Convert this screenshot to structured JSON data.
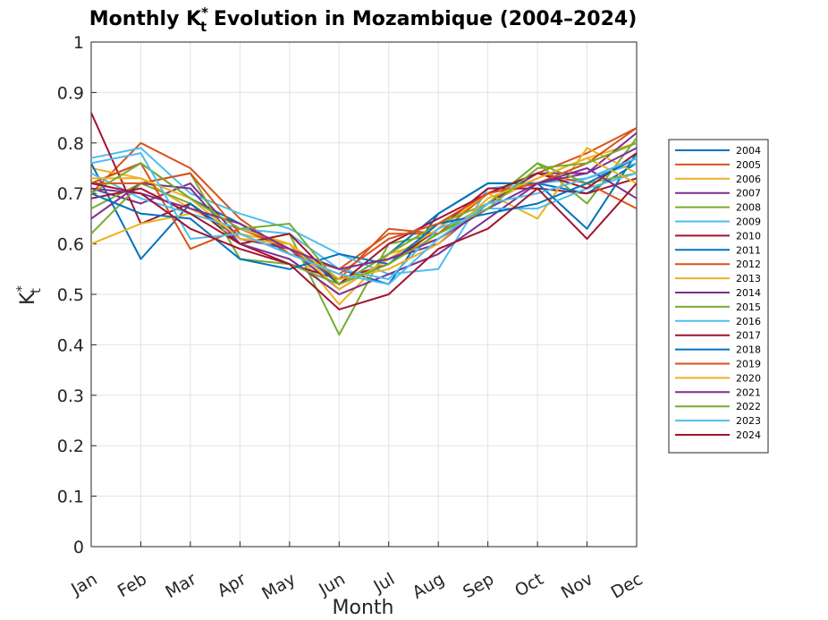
{
  "chart_data": {
    "type": "line",
    "title": {
      "prefix": "Monthly K",
      "sup": "*",
      "sub": "t",
      "suffix": " Evolution in Mozambique (2004–2024)"
    },
    "xlabel": "Month",
    "ylabel": {
      "base": "K",
      "sup": "*",
      "sub": "t"
    },
    "categories": [
      "Jan",
      "Feb",
      "Mar",
      "Apr",
      "May",
      "Jun",
      "Jul",
      "Aug",
      "Sep",
      "Oct",
      "Nov",
      "Dec"
    ],
    "ylim": [
      0,
      1
    ],
    "yticks": [
      "0",
      "0.1",
      "0.2",
      "0.3",
      "0.4",
      "0.5",
      "0.6",
      "0.7",
      "0.8",
      "0.9",
      "1"
    ],
    "grid": true,
    "legend_position": "outside-right",
    "series": [
      {
        "name": "2004",
        "color": "#0072BD",
        "values": [
          0.72,
          0.76,
          0.69,
          0.64,
          0.58,
          0.55,
          0.52,
          0.66,
          0.72,
          0.72,
          0.7,
          0.76
        ]
      },
      {
        "name": "2005",
        "color": "#D95319",
        "values": [
          0.7,
          0.8,
          0.75,
          0.65,
          0.58,
          0.55,
          0.62,
          0.62,
          0.7,
          0.74,
          0.78,
          0.83
        ]
      },
      {
        "name": "2006",
        "color": "#EDB120",
        "values": [
          0.75,
          0.73,
          0.67,
          0.62,
          0.6,
          0.48,
          0.58,
          0.61,
          0.68,
          0.73,
          0.77,
          0.8
        ]
      },
      {
        "name": "2007",
        "color": "#7E2F8E",
        "values": [
          0.71,
          0.68,
          0.72,
          0.61,
          0.59,
          0.51,
          0.57,
          0.6,
          0.68,
          0.74,
          0.74,
          0.82
        ]
      },
      {
        "name": "2008",
        "color": "#77AC30",
        "values": [
          0.67,
          0.72,
          0.68,
          0.6,
          0.62,
          0.42,
          0.6,
          0.62,
          0.68,
          0.76,
          0.68,
          0.81
        ]
      },
      {
        "name": "2009",
        "color": "#4DBEEE",
        "values": [
          0.77,
          0.79,
          0.7,
          0.66,
          0.63,
          0.58,
          0.54,
          0.55,
          0.71,
          0.72,
          0.73,
          0.76
        ]
      },
      {
        "name": "2010",
        "color": "#A2142F",
        "values": [
          0.86,
          0.64,
          0.68,
          0.6,
          0.56,
          0.53,
          0.56,
          0.63,
          0.71,
          0.71,
          0.7,
          0.73
        ]
      },
      {
        "name": "2011",
        "color": "#0072BD",
        "values": [
          0.76,
          0.57,
          0.68,
          0.61,
          0.6,
          0.52,
          0.58,
          0.66,
          0.72,
          0.72,
          0.63,
          0.78
        ]
      },
      {
        "name": "2012",
        "color": "#D95319",
        "values": [
          0.72,
          0.76,
          0.59,
          0.63,
          0.59,
          0.53,
          0.63,
          0.62,
          0.7,
          0.74,
          0.72,
          0.67
        ]
      },
      {
        "name": "2013",
        "color": "#EDB120",
        "values": [
          0.6,
          0.64,
          0.66,
          0.63,
          0.6,
          0.51,
          0.57,
          0.63,
          0.7,
          0.65,
          0.79,
          0.74
        ]
      },
      {
        "name": "2014",
        "color": "#7E2F8E",
        "values": [
          0.65,
          0.72,
          0.71,
          0.6,
          0.57,
          0.5,
          0.54,
          0.58,
          0.65,
          0.72,
          0.74,
          0.79
        ]
      },
      {
        "name": "2015",
        "color": "#77AC30",
        "values": [
          0.62,
          0.72,
          0.74,
          0.57,
          0.56,
          0.52,
          0.58,
          0.64,
          0.68,
          0.76,
          0.72,
          0.74
        ]
      },
      {
        "name": "2016",
        "color": "#4DBEEE",
        "values": [
          0.74,
          0.69,
          0.66,
          0.63,
          0.62,
          0.55,
          0.53,
          0.63,
          0.67,
          0.67,
          0.71,
          0.74
        ]
      },
      {
        "name": "2017",
        "color": "#A2142F",
        "values": [
          0.69,
          0.71,
          0.66,
          0.6,
          0.62,
          0.52,
          0.6,
          0.65,
          0.7,
          0.74,
          0.71,
          0.78
        ]
      },
      {
        "name": "2018",
        "color": "#0072BD",
        "values": [
          0.7,
          0.66,
          0.65,
          0.57,
          0.55,
          0.58,
          0.56,
          0.64,
          0.66,
          0.68,
          0.72,
          0.77
        ]
      },
      {
        "name": "2019",
        "color": "#D95319",
        "values": [
          0.72,
          0.72,
          0.74,
          0.62,
          0.58,
          0.54,
          0.61,
          0.64,
          0.7,
          0.72,
          0.76,
          0.83
        ]
      },
      {
        "name": "2020",
        "color": "#EDB120",
        "values": [
          0.73,
          0.73,
          0.69,
          0.61,
          0.6,
          0.53,
          0.55,
          0.6,
          0.69,
          0.73,
          0.77,
          0.72
        ]
      },
      {
        "name": "2021",
        "color": "#7E2F8E",
        "values": [
          0.71,
          0.7,
          0.67,
          0.64,
          0.59,
          0.55,
          0.57,
          0.61,
          0.67,
          0.72,
          0.75,
          0.69
        ]
      },
      {
        "name": "2022",
        "color": "#77AC30",
        "values": [
          0.7,
          0.76,
          0.69,
          0.63,
          0.64,
          0.52,
          0.56,
          0.62,
          0.67,
          0.75,
          0.76,
          0.8
        ]
      },
      {
        "name": "2023",
        "color": "#4DBEEE",
        "values": [
          0.76,
          0.78,
          0.61,
          0.62,
          0.58,
          0.54,
          0.52,
          0.61,
          0.68,
          0.7,
          0.73,
          0.77
        ]
      },
      {
        "name": "2024",
        "color": "#A2142F",
        "values": [
          0.72,
          0.7,
          0.63,
          0.59,
          0.56,
          0.47,
          0.5,
          0.59,
          0.63,
          0.71,
          0.61,
          0.72
        ]
      }
    ]
  }
}
